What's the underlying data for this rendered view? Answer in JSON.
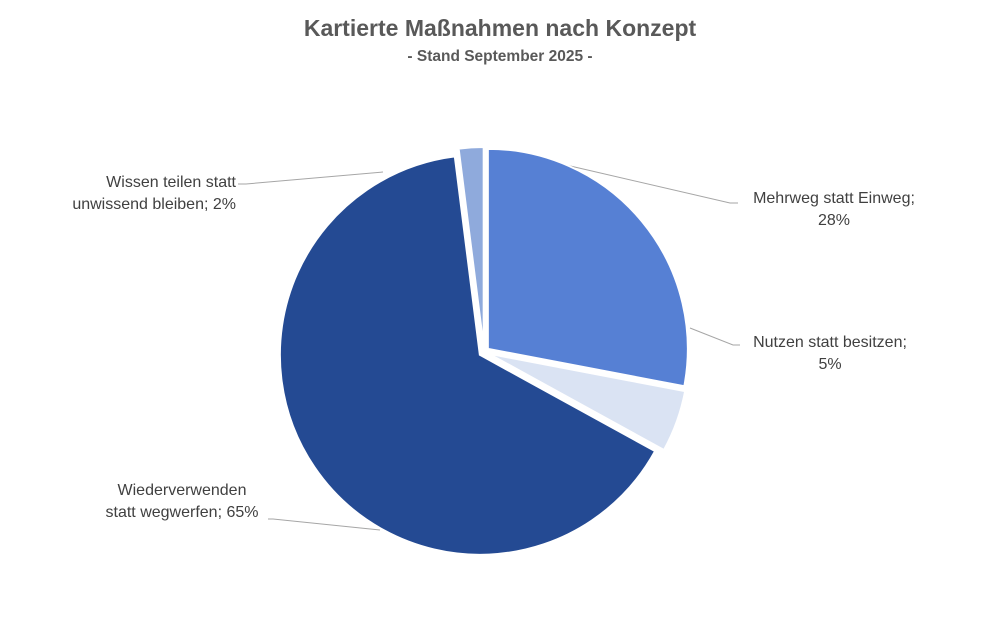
{
  "chart_data": {
    "type": "pie",
    "title": "Kartierte Maßnahmen nach Konzept",
    "subtitle": "- Stand September 2025 -",
    "categories": [
      "Mehrweg statt Einweg",
      "Nutzen statt besitzen",
      "Wiederverwenden statt wegwerfen",
      "Wissen teilen statt unwissend bleiben"
    ],
    "values": [
      28,
      5,
      65,
      2
    ],
    "unit": "%",
    "colors": [
      "#5680D4",
      "#DAE3F3",
      "#244A93",
      "#8FAADC"
    ],
    "start_angle_deg": 0,
    "direction": "clockwise",
    "exploded": true,
    "legend": "none",
    "data_labels": "category; percentage with leader lines"
  },
  "labels": {
    "mehrweg": {
      "line1": "Mehrweg statt Einweg;",
      "line2": "28%"
    },
    "nutzen": {
      "line1": "Nutzen statt besitzen;",
      "line2": "5%"
    },
    "wieder": {
      "line1": "Wiederverwenden",
      "line2": "statt wegwerfen; 65%"
    },
    "wissen": {
      "line1": "Wissen teilen statt",
      "line2": "unwissend bleiben; 2%"
    }
  }
}
